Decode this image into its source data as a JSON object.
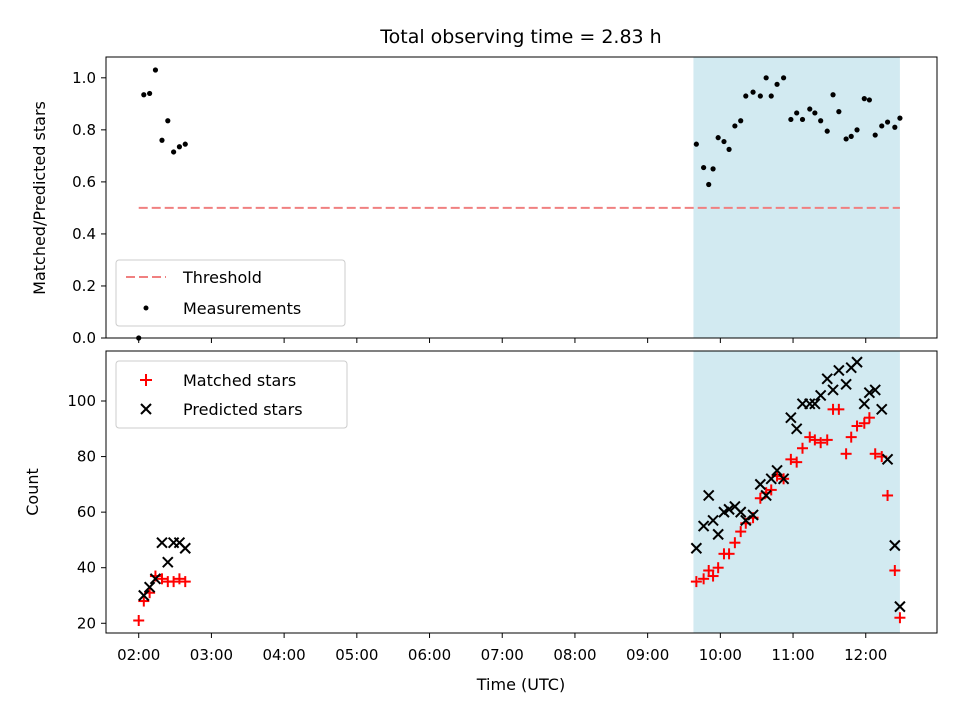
{
  "figure": {
    "title": "Total observing time = 2.83 h",
    "xlabel": "Time (UTC)",
    "xticks": [
      "02:00",
      "03:00",
      "04:00",
      "05:00",
      "06:00",
      "07:00",
      "08:00",
      "09:00",
      "10:00",
      "11:00",
      "12:00"
    ]
  },
  "chart_data": [
    {
      "type": "scatter",
      "ylabel": "Matched/Predicted stars",
      "ylim": [
        0,
        1.08
      ],
      "xlim": [
        1.55,
        12.98
      ],
      "yticks": [
        "0.0",
        "0.2",
        "0.4",
        "0.6",
        "0.8",
        "1.0"
      ],
      "shaded_region": {
        "x": [
          9.63,
          12.47
        ],
        "color": "#add8e6"
      },
      "legend": {
        "placement": "lower-left",
        "entries": [
          {
            "label": "Threshold"
          },
          {
            "label": "Measurements"
          }
        ]
      },
      "threshold": {
        "name": "Threshold",
        "y": 0.5,
        "x": [
          2.0,
          12.47
        ],
        "color": "#f08080"
      },
      "series": [
        {
          "name": "Measurements",
          "color": "#000000",
          "points": [
            [
              2.0,
              0.0
            ],
            [
              2.07,
              0.935
            ],
            [
              2.15,
              0.94
            ],
            [
              2.23,
              1.03
            ],
            [
              2.32,
              0.76
            ],
            [
              2.4,
              0.835
            ],
            [
              2.48,
              0.715
            ],
            [
              2.56,
              0.735
            ],
            [
              2.64,
              0.745
            ],
            [
              9.67,
              0.745
            ],
            [
              9.77,
              0.655
            ],
            [
              9.84,
              0.59
            ],
            [
              9.9,
              0.65
            ],
            [
              9.97,
              0.77
            ],
            [
              10.05,
              0.755
            ],
            [
              10.12,
              0.725
            ],
            [
              10.2,
              0.815
            ],
            [
              10.28,
              0.835
            ],
            [
              10.35,
              0.93
            ],
            [
              10.45,
              0.945
            ],
            [
              10.55,
              0.93
            ],
            [
              10.63,
              1.0
            ],
            [
              10.7,
              0.93
            ],
            [
              10.78,
              0.975
            ],
            [
              10.87,
              1.0
            ],
            [
              10.97,
              0.84
            ],
            [
              11.05,
              0.865
            ],
            [
              11.13,
              0.84
            ],
            [
              11.23,
              0.88
            ],
            [
              11.3,
              0.865
            ],
            [
              11.38,
              0.835
            ],
            [
              11.47,
              0.795
            ],
            [
              11.55,
              0.935
            ],
            [
              11.63,
              0.87
            ],
            [
              11.73,
              0.765
            ],
            [
              11.8,
              0.775
            ],
            [
              11.88,
              0.8
            ],
            [
              11.98,
              0.92
            ],
            [
              12.05,
              0.915
            ],
            [
              12.13,
              0.78
            ],
            [
              12.22,
              0.815
            ],
            [
              12.3,
              0.83
            ],
            [
              12.4,
              0.81
            ],
            [
              12.47,
              0.845
            ]
          ]
        }
      ]
    },
    {
      "type": "scatter",
      "ylabel": "Count",
      "ylim": [
        16.5,
        118
      ],
      "xlim": [
        1.55,
        12.98
      ],
      "yticks": [
        "20",
        "40",
        "60",
        "80",
        "100"
      ],
      "shaded_region": {
        "x": [
          9.63,
          12.47
        ],
        "color": "#add8e6"
      },
      "legend": {
        "placement": "upper-left",
        "entries": [
          {
            "label": "Matched stars"
          },
          {
            "label": "Predicted stars"
          }
        ]
      },
      "series": [
        {
          "name": "Matched stars",
          "marker": "plus",
          "color": "#ff0000",
          "points": [
            [
              2.0,
              21
            ],
            [
              2.07,
              28
            ],
            [
              2.15,
              31
            ],
            [
              2.23,
              37
            ],
            [
              2.32,
              36
            ],
            [
              2.4,
              35
            ],
            [
              2.48,
              35
            ],
            [
              2.56,
              36
            ],
            [
              2.64,
              35
            ],
            [
              9.67,
              35
            ],
            [
              9.77,
              36
            ],
            [
              9.84,
              39
            ],
            [
              9.9,
              37
            ],
            [
              9.97,
              40
            ],
            [
              10.05,
              45
            ],
            [
              10.12,
              45
            ],
            [
              10.2,
              49
            ],
            [
              10.28,
              53
            ],
            [
              10.35,
              56
            ],
            [
              10.45,
              58
            ],
            [
              10.55,
              65
            ],
            [
              10.63,
              67
            ],
            [
              10.7,
              68
            ],
            [
              10.78,
              73
            ],
            [
              10.87,
              72
            ],
            [
              10.97,
              79
            ],
            [
              11.05,
              78
            ],
            [
              11.13,
              83
            ],
            [
              11.23,
              87
            ],
            [
              11.3,
              86
            ],
            [
              11.38,
              85
            ],
            [
              11.47,
              86
            ],
            [
              11.55,
              97
            ],
            [
              11.63,
              97
            ],
            [
              11.73,
              81
            ],
            [
              11.8,
              87
            ],
            [
              11.88,
              91
            ],
            [
              11.98,
              92
            ],
            [
              12.05,
              94
            ],
            [
              12.13,
              81
            ],
            [
              12.22,
              80
            ],
            [
              12.3,
              66
            ],
            [
              12.4,
              39
            ],
            [
              12.47,
              22
            ]
          ]
        },
        {
          "name": "Predicted stars",
          "marker": "x",
          "color": "#000000",
          "points": [
            [
              2.07,
              30
            ],
            [
              2.15,
              33
            ],
            [
              2.23,
              36
            ],
            [
              2.32,
              49
            ],
            [
              2.4,
              42
            ],
            [
              2.48,
              49
            ],
            [
              2.56,
              49
            ],
            [
              2.64,
              47
            ],
            [
              9.67,
              47
            ],
            [
              9.77,
              55
            ],
            [
              9.84,
              66
            ],
            [
              9.9,
              57
            ],
            [
              9.97,
              52
            ],
            [
              10.05,
              60
            ],
            [
              10.12,
              61
            ],
            [
              10.2,
              62
            ],
            [
              10.28,
              60
            ],
            [
              10.35,
              57
            ],
            [
              10.45,
              59
            ],
            [
              10.55,
              70
            ],
            [
              10.63,
              66
            ],
            [
              10.7,
              72
            ],
            [
              10.78,
              75
            ],
            [
              10.87,
              72
            ],
            [
              10.97,
              94
            ],
            [
              11.05,
              90
            ],
            [
              11.13,
              99
            ],
            [
              11.23,
              99
            ],
            [
              11.3,
              99
            ],
            [
              11.38,
              102
            ],
            [
              11.47,
              108
            ],
            [
              11.55,
              104
            ],
            [
              11.63,
              111
            ],
            [
              11.73,
              106
            ],
            [
              11.8,
              112
            ],
            [
              11.88,
              114
            ],
            [
              11.98,
              99
            ],
            [
              12.05,
              103
            ],
            [
              12.13,
              104
            ],
            [
              12.22,
              97
            ],
            [
              12.3,
              79
            ],
            [
              12.4,
              48
            ],
            [
              12.47,
              26
            ]
          ]
        }
      ]
    }
  ]
}
